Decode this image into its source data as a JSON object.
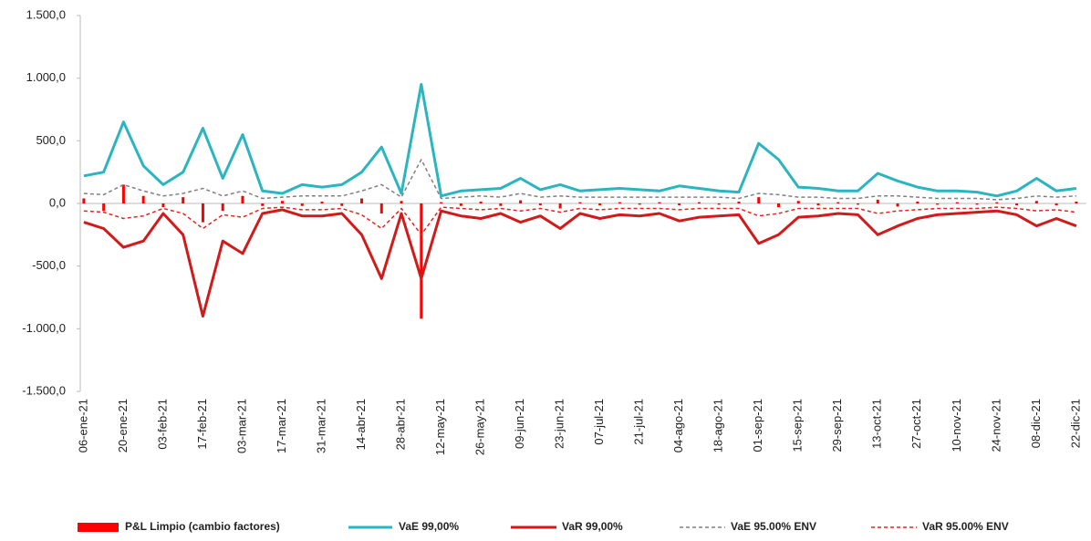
{
  "chart_data": {
    "type": "line",
    "categories": [
      "06-ene-21",
      null,
      "20-ene-21",
      null,
      "03-feb-21",
      null,
      "17-feb-21",
      null,
      "03-mar-21",
      null,
      "17-mar-21",
      null,
      "31-mar-21",
      null,
      "14-abr-21",
      null,
      "28-abr-21",
      null,
      "12-may-21",
      null,
      "26-may-21",
      null,
      "09-jun-21",
      null,
      "23-jun-21",
      null,
      "07-jul-21",
      null,
      "21-jul-21",
      null,
      "04-ago-21",
      null,
      "18-ago-21",
      null,
      "01-sep-21",
      null,
      "15-sep-21",
      null,
      "29-sep-21",
      null,
      "13-oct-21",
      null,
      "27-oct-21",
      null,
      "10-nov-21",
      null,
      "24-nov-21",
      null,
      "08-dic-21",
      null,
      "22-dic-21"
    ],
    "series": [
      {
        "name": "P&L Limpio (cambio factores)",
        "style": "bar",
        "color": "#ff0000",
        "values": [
          40,
          -60,
          150,
          60,
          -30,
          50,
          -150,
          -60,
          60,
          -20,
          20,
          -20,
          15,
          -20,
          40,
          -80,
          20,
          -920,
          10,
          -20,
          15,
          -20,
          25,
          -15,
          -40,
          10,
          -15,
          10,
          -10,
          10,
          -15,
          10,
          -10,
          15,
          50,
          -30,
          20,
          -15,
          10,
          -10,
          30,
          -25,
          15,
          -10,
          10,
          -10,
          10,
          -15,
          20,
          -15,
          15
        ]
      },
      {
        "name": "VaE 99,00%",
        "style": "solid",
        "color": "#2bb5c0",
        "values": [
          220,
          250,
          650,
          300,
          150,
          250,
          600,
          200,
          550,
          100,
          80,
          150,
          130,
          150,
          250,
          450,
          80,
          950,
          60,
          100,
          110,
          120,
          200,
          110,
          150,
          100,
          110,
          120,
          110,
          100,
          140,
          120,
          100,
          90,
          480,
          350,
          130,
          120,
          100,
          100,
          240,
          180,
          130,
          100,
          100,
          90,
          60,
          100,
          200,
          100,
          120
        ]
      },
      {
        "name": "VaR 99,00%",
        "style": "solid",
        "color": "#d11a1a",
        "values": [
          -150,
          -200,
          -350,
          -300,
          -80,
          -250,
          -900,
          -300,
          -400,
          -80,
          -50,
          -100,
          -100,
          -80,
          -250,
          -600,
          -80,
          -600,
          -60,
          -100,
          -120,
          -80,
          -150,
          -100,
          -200,
          -80,
          -120,
          -90,
          -100,
          -80,
          -140,
          -110,
          -100,
          -90,
          -320,
          -250,
          -110,
          -100,
          -80,
          -90,
          -250,
          -180,
          -120,
          -90,
          -80,
          -70,
          -60,
          -90,
          -180,
          -120,
          -180
        ]
      },
      {
        "name": "VaE 95.00% ENV",
        "style": "dashed",
        "color": "#808080",
        "values": [
          80,
          70,
          150,
          100,
          60,
          80,
          120,
          60,
          100,
          40,
          50,
          60,
          60,
          60,
          100,
          150,
          50,
          350,
          40,
          50,
          60,
          50,
          80,
          50,
          60,
          50,
          50,
          50,
          50,
          50,
          50,
          50,
          50,
          40,
          80,
          70,
          50,
          50,
          40,
          40,
          60,
          60,
          50,
          40,
          40,
          40,
          30,
          40,
          60,
          50,
          60
        ]
      },
      {
        "name": "VaR 95.00% ENV",
        "style": "dashed",
        "color": "#e8231f",
        "values": [
          -60,
          -70,
          -120,
          -100,
          -40,
          -80,
          -200,
          -90,
          -110,
          -40,
          -30,
          -50,
          -50,
          -40,
          -90,
          -200,
          -40,
          -250,
          -30,
          -40,
          -50,
          -40,
          -60,
          -40,
          -70,
          -40,
          -50,
          -40,
          -40,
          -40,
          -50,
          -40,
          -40,
          -40,
          -100,
          -80,
          -40,
          -40,
          -40,
          -40,
          -80,
          -60,
          -50,
          -40,
          -40,
          -40,
          -30,
          -40,
          -60,
          -50,
          -70
        ]
      }
    ],
    "ylim": [
      -1500,
      1500
    ],
    "yticks": [
      {
        "value": -1500,
        "label": "-1.500,0"
      },
      {
        "value": -1000,
        "label": "-1.000,0"
      },
      {
        "value": -500,
        "label": "-500,0"
      },
      {
        "value": 0,
        "label": "0,0"
      },
      {
        "value": 500,
        "label": "500,0"
      },
      {
        "value": 1000,
        "label": "1.000,0"
      },
      {
        "value": 1500,
        "label": "1.500,0"
      }
    ],
    "grid": false,
    "legend": "bottom"
  }
}
